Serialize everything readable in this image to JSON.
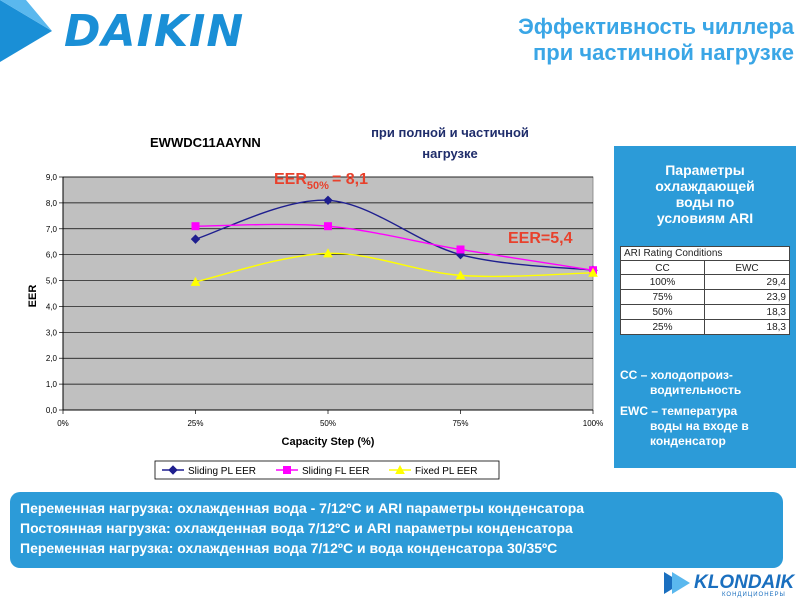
{
  "header": {
    "logo": "DAIKIN",
    "title_line1": "Эффективность чиллера",
    "title_line2": "при частичной нагрузке"
  },
  "chart_data": {
    "type": "line",
    "title": "EWWDC11AAYNN",
    "subtitle_line1": "при полной и частичной",
    "subtitle_line2": "нагрузке",
    "xlabel": "Capacity Step (%)",
    "ylabel": "EER",
    "x_ticks": [
      "0%",
      "25%",
      "50%",
      "75%",
      "100%"
    ],
    "y_ticks": [
      "0,0",
      "1,0",
      "2,0",
      "3,0",
      "4,0",
      "5,0",
      "6,0",
      "7,0",
      "8,0",
      "9,0"
    ],
    "xlim": [
      0,
      100
    ],
    "ylim": [
      0,
      9
    ],
    "grid": true,
    "legend_position": "bottom",
    "series": [
      {
        "name": "Sliding PL EER",
        "color": "#1f1f8f",
        "marker": "diamond",
        "x": [
          25,
          50,
          75,
          100
        ],
        "values": [
          6.6,
          8.1,
          6.0,
          5.4
        ]
      },
      {
        "name": "Sliding FL EER",
        "color": "#ff00ff",
        "marker": "square",
        "x": [
          25,
          50,
          75,
          100
        ],
        "values": [
          7.1,
          7.1,
          6.2,
          5.4
        ]
      },
      {
        "name": "Fixed PL EER",
        "color": "#ffff00",
        "marker": "triangle",
        "x": [
          25,
          50,
          75,
          100
        ],
        "values": [
          4.95,
          6.05,
          5.2,
          5.3
        ]
      }
    ],
    "annotations": {
      "eer50_main": "EER",
      "eer50_sub": "50%",
      "eer50_value": "= 8,1",
      "eer_full": "EER=5,4",
      "color": "#e8412c"
    }
  },
  "panel": {
    "heading_l1": "Параметры",
    "heading_l2": "охлаждающей",
    "heading_l3": "воды по",
    "heading_l4": "условиям ARI",
    "table_title": "ARI Rating Conditions",
    "col_cc": "CC",
    "col_ewc": "EWC",
    "rows": [
      {
        "cc": "100%",
        "ewc": "29,4"
      },
      {
        "cc": "75%",
        "ewc": "23,9"
      },
      {
        "cc": "50%",
        "ewc": "18,3"
      },
      {
        "cc": "25%",
        "ewc": "18,3"
      }
    ],
    "note_cc_l1": "CC – холодопроиз-",
    "note_cc_l2": "водительность",
    "note_ewc_l1": "EWC – температура",
    "note_ewc_l2": "воды на входе в",
    "note_ewc_l3": "конденсатор"
  },
  "bottom": {
    "line1": "Переменная нагрузка: охлажденная вода - 7/12ºС и ARI параметры конденсатора",
    "line2": "Постоянная нагрузка: охлажденная вода 7/12ºС и ARI параметры  конденсатора",
    "line3": "Переменная нагрузка: охлажденная вода 7/12ºС и вода конденсатора 30/35ºС"
  },
  "footer": {
    "logo": "KLONDAIK",
    "logo_sub": "КОНДИЦИОНЕРЫ"
  },
  "colors": {
    "accent": "#2c9bd8",
    "brand": "#1a8fd6",
    "plot_bg": "#c0c0c0"
  }
}
